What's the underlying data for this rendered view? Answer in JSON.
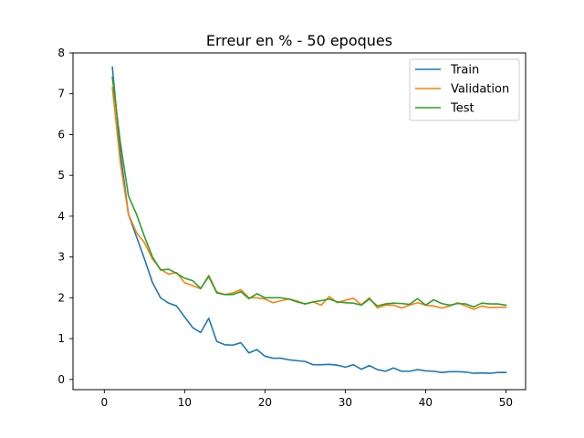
{
  "chart_data": {
    "type": "line",
    "title": "Erreur en % - 50 epoques",
    "xlabel": "",
    "ylabel": "",
    "xlim": [
      -3.9,
      52.45
    ],
    "ylim": [
      -0.25,
      8.0
    ],
    "xticks": [
      0,
      10,
      20,
      30,
      40,
      50
    ],
    "yticks": [
      0,
      1,
      2,
      3,
      4,
      5,
      6,
      7,
      8
    ],
    "grid": false,
    "legend_position": "top-right",
    "x": [
      1,
      2,
      3,
      4,
      5,
      6,
      7,
      8,
      9,
      10,
      11,
      12,
      13,
      14,
      15,
      16,
      17,
      18,
      19,
      20,
      21,
      22,
      23,
      24,
      25,
      26,
      27,
      28,
      29,
      30,
      31,
      32,
      33,
      34,
      35,
      36,
      37,
      38,
      39,
      40,
      41,
      42,
      43,
      44,
      45,
      46,
      47,
      48,
      49,
      50
    ],
    "series": [
      {
        "name": "Train",
        "color": "#1f77b4",
        "values": [
          7.65,
          5.55,
          4.05,
          3.5,
          2.95,
          2.37,
          2.0,
          1.87,
          1.8,
          1.53,
          1.27,
          1.15,
          1.5,
          0.93,
          0.85,
          0.84,
          0.9,
          0.65,
          0.73,
          0.57,
          0.52,
          0.52,
          0.48,
          0.46,
          0.44,
          0.36,
          0.36,
          0.37,
          0.35,
          0.3,
          0.36,
          0.25,
          0.34,
          0.24,
          0.2,
          0.28,
          0.2,
          0.2,
          0.24,
          0.21,
          0.2,
          0.17,
          0.19,
          0.19,
          0.18,
          0.15,
          0.16,
          0.15,
          0.17,
          0.17
        ]
      },
      {
        "name": "Validation",
        "color": "#ff7f0e",
        "values": [
          7.15,
          5.3,
          4.05,
          3.6,
          3.35,
          2.95,
          2.7,
          2.58,
          2.62,
          2.37,
          2.3,
          2.22,
          2.55,
          2.14,
          2.08,
          2.12,
          2.2,
          2.0,
          2.0,
          1.97,
          1.88,
          1.93,
          1.97,
          1.92,
          1.85,
          1.9,
          1.82,
          2.03,
          1.88,
          1.94,
          1.99,
          1.83,
          2.0,
          1.75,
          1.82,
          1.82,
          1.75,
          1.82,
          1.88,
          1.82,
          1.8,
          1.75,
          1.8,
          1.88,
          1.8,
          1.72,
          1.8,
          1.76,
          1.77,
          1.77
        ]
      },
      {
        "name": "Test",
        "color": "#2ca02c",
        "values": [
          7.4,
          5.8,
          4.5,
          4.05,
          3.5,
          3.0,
          2.68,
          2.7,
          2.6,
          2.48,
          2.42,
          2.23,
          2.52,
          2.12,
          2.08,
          2.08,
          2.15,
          1.98,
          2.1,
          2.0,
          2.0,
          2.0,
          1.97,
          1.9,
          1.85,
          1.9,
          1.93,
          1.97,
          1.9,
          1.88,
          1.87,
          1.82,
          1.97,
          1.8,
          1.85,
          1.87,
          1.86,
          1.84,
          1.98,
          1.82,
          1.95,
          1.86,
          1.82,
          1.86,
          1.85,
          1.78,
          1.87,
          1.85,
          1.85,
          1.82
        ]
      }
    ]
  }
}
